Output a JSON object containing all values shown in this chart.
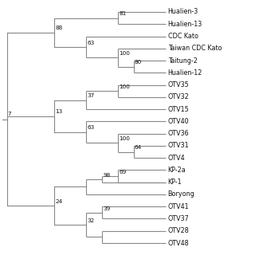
{
  "bg_color": "#ffffff",
  "line_color": "#888888",
  "text_color": "#111111",
  "font_size": 5.8,
  "bootstrap_font_size": 5.2,
  "figsize": [
    3.2,
    3.2
  ],
  "dpi": 100,
  "leaves": [
    {
      "name": "Hualien-3",
      "row": 0
    },
    {
      "name": "Hualien-13",
      "row": 1
    },
    {
      "name": "CDC Kato",
      "row": 2
    },
    {
      "name": "Taiwan CDC Kato",
      "row": 3
    },
    {
      "name": "Taitung-2",
      "row": 4
    },
    {
      "name": "Hualien-12",
      "row": 5
    },
    {
      "name": "OTV35",
      "row": 6
    },
    {
      "name": "OTV32",
      "row": 7
    },
    {
      "name": "OTV15",
      "row": 8
    },
    {
      "name": "OTV40",
      "row": 9
    },
    {
      "name": "OTV36",
      "row": 10
    },
    {
      "name": "OTV31",
      "row": 11
    },
    {
      "name": "OTV4",
      "row": 12
    },
    {
      "name": "KP-2a",
      "row": 13
    },
    {
      "name": "KP-1",
      "row": 14
    },
    {
      "name": "Boryong",
      "row": 15
    },
    {
      "name": "OTV41",
      "row": 16
    },
    {
      "name": "OTV37",
      "row": 17
    },
    {
      "name": "OTV28",
      "row": 18
    },
    {
      "name": "OTV48",
      "row": 19
    }
  ],
  "internal_nodes": [
    {
      "id": "n_hua3_13",
      "children": [
        "Hualien-3",
        "Hualien-13"
      ],
      "depth": 6,
      "bootstrap": "81"
    },
    {
      "id": "n_hua_top",
      "children": [
        "n_hua3_13",
        "Hualien-13"
      ],
      "depth": 5,
      "bootstrap": "88"
    },
    {
      "id": "n_cdc_inner",
      "children": [
        "Taiwan CDC Kato",
        "n_tai_hua12"
      ],
      "depth": 7,
      "bootstrap": "100"
    },
    {
      "id": "n_tai_hua12",
      "children": [
        "Taitung-2",
        "Hualien-12"
      ],
      "depth": 8,
      "bootstrap": "80"
    },
    {
      "id": "n_kato",
      "children": [
        "CDC Kato",
        "n_cdc_inner"
      ],
      "depth": 6,
      "bootstrap": "63"
    },
    {
      "id": "n_top",
      "children": [
        "n_hua_top",
        "n_kato"
      ],
      "depth": 4,
      "bootstrap": "88"
    },
    {
      "id": "n_otv35_32",
      "children": [
        "OTV35",
        "OTV32"
      ],
      "depth": 7,
      "bootstrap": "100"
    },
    {
      "id": "n_otv_up",
      "children": [
        "n_otv35_32",
        "OTV15"
      ],
      "depth": 5,
      "bootstrap": "37"
    },
    {
      "id": "n_otv31_4",
      "children": [
        "OTV31",
        "OTV4"
      ],
      "depth": 8,
      "bootstrap": "64"
    },
    {
      "id": "n_otv36_grp",
      "children": [
        "OTV36",
        "n_otv31_4"
      ],
      "depth": 7,
      "bootstrap": "100"
    },
    {
      "id": "n_otv40_grp",
      "children": [
        "OTV40",
        "n_otv36_grp"
      ],
      "depth": 6,
      "bootstrap": "63"
    },
    {
      "id": "n_mid",
      "children": [
        "n_otv_up",
        "n_otv40_grp"
      ],
      "depth": 4,
      "bootstrap": "13"
    },
    {
      "id": "n_kp2a_1",
      "children": [
        "KP-2a",
        "KP-1"
      ],
      "depth": 7,
      "bootstrap": "69"
    },
    {
      "id": "n_kp_grp",
      "children": [
        "n_kp2a_1",
        "KP-1"
      ],
      "depth": 6,
      "bootstrap": "98"
    },
    {
      "id": "n_bory_grp",
      "children": [
        "n_kp_grp",
        "Boryong"
      ],
      "depth": 5,
      "bootstrap": ""
    },
    {
      "id": "n_otv41_37",
      "children": [
        "OTV41",
        "OTV37"
      ],
      "depth": 6,
      "bootstrap": "39"
    },
    {
      "id": "n_otv28_48",
      "children": [
        "OTV28",
        "OTV48"
      ],
      "depth": 6,
      "bootstrap": ""
    },
    {
      "id": "n_bot_grp",
      "children": [
        "n_otv41_37",
        "n_otv28_48"
      ],
      "depth": 5,
      "bootstrap": "32"
    },
    {
      "id": "n_low",
      "children": [
        "n_bory_grp",
        "n_bot_grp"
      ],
      "depth": 4,
      "bootstrap": "24"
    },
    {
      "id": "root",
      "children": [
        "n_top",
        "n_mid",
        "n_low"
      ],
      "depth": 0,
      "bootstrap": "7"
    }
  ]
}
